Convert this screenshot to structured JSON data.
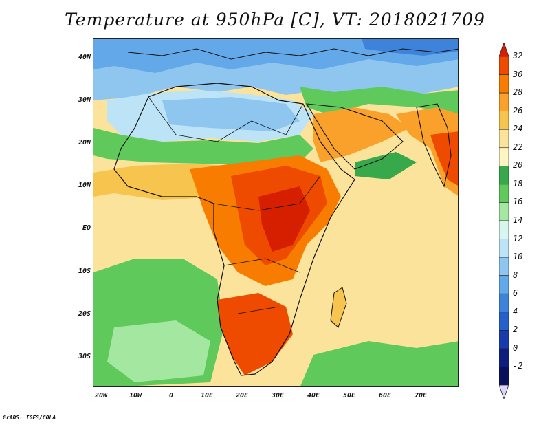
{
  "title": "Temperature at 950hPa [C], VT: 2018021709",
  "credit": "GrADS: IGES/COLA",
  "lat_labels": [
    "40N",
    "30N",
    "20N",
    "10N",
    "EQ",
    "10S",
    "20S",
    "30S"
  ],
  "lon_labels": [
    "20W",
    "10W",
    "0",
    "10E",
    "20E",
    "30E",
    "40E",
    "50E",
    "60E",
    "70E"
  ],
  "colorbar": {
    "levels": [
      "32",
      "30",
      "28",
      "26",
      "24",
      "22",
      "20",
      "18",
      "16",
      "14",
      "12",
      "10",
      "8",
      "6",
      "4",
      "2",
      "0",
      "-2"
    ],
    "colors": [
      "#d61f00",
      "#ee4a00",
      "#f77c00",
      "#f9a12a",
      "#f7c44d",
      "#fbe39b",
      "#fdf5c2",
      "#37a94a",
      "#5fc95c",
      "#a4e7a0",
      "#d8f6ee",
      "#bde3f7",
      "#8ec6ef",
      "#63a8e8",
      "#3e83d9",
      "#245fca",
      "#163cae",
      "#0d1e7e",
      "#0a0f5c",
      "#ddd5ff"
    ]
  },
  "map": {
    "lat_range": [
      -37,
      45
    ],
    "lon_range": [
      -23,
      80
    ],
    "field": "temperature_950hPa",
    "units": "C"
  }
}
